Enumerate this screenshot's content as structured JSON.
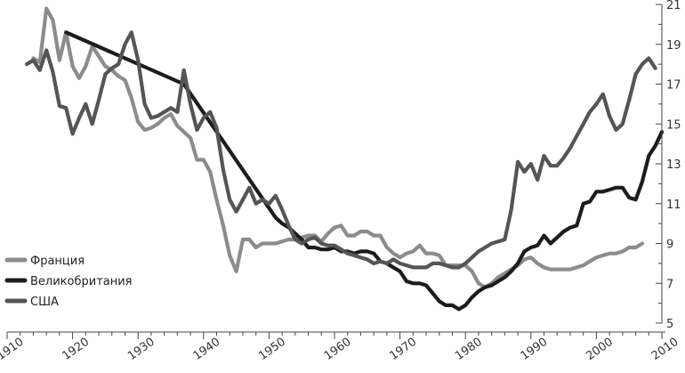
{
  "chart_data": {
    "type": "line",
    "title": "",
    "xlabel": "",
    "ylabel": "",
    "xlim": [
      1910,
      2010
    ],
    "ylim": [
      5,
      21
    ],
    "x_ticks": [
      "1910",
      "1920",
      "1930",
      "1940",
      "1950",
      "1960",
      "1970",
      "1980",
      "1990",
      "2000",
      "2010"
    ],
    "y_ticks": [
      "5",
      "7",
      "9",
      "11",
      "13",
      "15",
      "17",
      "19",
      "21"
    ],
    "y_axis_side": "right",
    "grid": false,
    "legend": {
      "position": "bottom-left"
    },
    "series": [
      {
        "name": "Франция",
        "color": "#8c8c8c",
        "points": [
          [
            1914,
            18.3
          ],
          [
            1915,
            18.1
          ],
          [
            1916,
            20.8
          ],
          [
            1917,
            20.2
          ],
          [
            1918,
            18.2
          ],
          [
            1919,
            19.6
          ],
          [
            1920,
            17.9
          ],
          [
            1921,
            17.3
          ],
          [
            1922,
            17.9
          ],
          [
            1923,
            18.9
          ],
          [
            1924,
            18.4
          ],
          [
            1925,
            17.9
          ],
          [
            1926,
            17.7
          ],
          [
            1927,
            17.4
          ],
          [
            1928,
            17.2
          ],
          [
            1929,
            16.3
          ],
          [
            1930,
            15.1
          ],
          [
            1931,
            14.7
          ],
          [
            1932,
            14.8
          ],
          [
            1933,
            15.0
          ],
          [
            1934,
            15.3
          ],
          [
            1935,
            15.5
          ],
          [
            1936,
            14.9
          ],
          [
            1937,
            14.6
          ],
          [
            1938,
            14.3
          ],
          [
            1939,
            13.2
          ],
          [
            1940,
            13.2
          ],
          [
            1941,
            12.6
          ],
          [
            1942,
            11.2
          ],
          [
            1943,
            9.9
          ],
          [
            1944,
            8.4
          ],
          [
            1945,
            7.6
          ],
          [
            1946,
            9.2
          ],
          [
            1947,
            9.2
          ],
          [
            1948,
            8.8
          ],
          [
            1949,
            9.0
          ],
          [
            1950,
            9.0
          ],
          [
            1951,
            9.0
          ],
          [
            1952,
            9.1
          ],
          [
            1953,
            9.2
          ],
          [
            1954,
            9.2
          ],
          [
            1955,
            9.3
          ],
          [
            1956,
            9.4
          ],
          [
            1957,
            9.4
          ],
          [
            1958,
            9.1
          ],
          [
            1959,
            9.5
          ],
          [
            1960,
            9.8
          ],
          [
            1961,
            9.9
          ],
          [
            1962,
            9.4
          ],
          [
            1963,
            9.4
          ],
          [
            1964,
            9.6
          ],
          [
            1965,
            9.6
          ],
          [
            1966,
            9.4
          ],
          [
            1967,
            9.4
          ],
          [
            1968,
            8.8
          ],
          [
            1969,
            8.5
          ],
          [
            1970,
            8.3
          ],
          [
            1971,
            8.5
          ],
          [
            1972,
            8.6
          ],
          [
            1973,
            8.9
          ],
          [
            1974,
            8.5
          ],
          [
            1975,
            8.5
          ],
          [
            1976,
            8.4
          ],
          [
            1977,
            7.9
          ],
          [
            1978,
            7.9
          ],
          [
            1979,
            7.9
          ],
          [
            1980,
            7.9
          ],
          [
            1981,
            7.6
          ],
          [
            1982,
            7.0
          ],
          [
            1983,
            6.8
          ],
          [
            1984,
            7.0
          ],
          [
            1985,
            7.3
          ],
          [
            1986,
            7.5
          ],
          [
            1987,
            7.7
          ],
          [
            1988,
            7.9
          ],
          [
            1989,
            8.2
          ],
          [
            1990,
            8.3
          ],
          [
            1991,
            8.0
          ],
          [
            1992,
            7.8
          ],
          [
            1993,
            7.7
          ],
          [
            1994,
            7.7
          ],
          [
            1995,
            7.7
          ],
          [
            1996,
            7.7
          ],
          [
            1997,
            7.8
          ],
          [
            1998,
            7.9
          ],
          [
            1999,
            8.1
          ],
          [
            2000,
            8.3
          ],
          [
            2001,
            8.4
          ],
          [
            2002,
            8.5
          ],
          [
            2003,
            8.5
          ],
          [
            2004,
            8.6
          ],
          [
            2005,
            8.8
          ],
          [
            2006,
            8.8
          ],
          [
            2007,
            9.0
          ]
        ]
      },
      {
        "name": "Великобритания",
        "color": "#1c1c1c",
        "points": [
          [
            1919,
            19.6
          ],
          [
            1937,
            17.0
          ],
          [
            1951,
            10.3
          ],
          [
            1952,
            10.0
          ],
          [
            1953,
            9.8
          ],
          [
            1954,
            9.5
          ],
          [
            1955,
            9.2
          ],
          [
            1956,
            8.8
          ],
          [
            1957,
            8.8
          ],
          [
            1958,
            8.7
          ],
          [
            1959,
            8.7
          ],
          [
            1960,
            8.8
          ],
          [
            1961,
            8.6
          ],
          [
            1962,
            8.6
          ],
          [
            1963,
            8.5
          ],
          [
            1964,
            8.6
          ],
          [
            1965,
            8.6
          ],
          [
            1966,
            8.5
          ],
          [
            1967,
            8.1
          ],
          [
            1968,
            8.0
          ],
          [
            1969,
            7.8
          ],
          [
            1970,
            7.6
          ],
          [
            1971,
            7.1
          ],
          [
            1972,
            7.0
          ],
          [
            1973,
            7.0
          ],
          [
            1974,
            6.9
          ],
          [
            1975,
            6.5
          ],
          [
            1976,
            6.1
          ],
          [
            1977,
            5.9
          ],
          [
            1978,
            5.9
          ],
          [
            1979,
            5.7
          ],
          [
            1980,
            5.9
          ],
          [
            1981,
            6.3
          ],
          [
            1982,
            6.6
          ],
          [
            1983,
            6.8
          ],
          [
            1984,
            6.9
          ],
          [
            1985,
            7.1
          ],
          [
            1986,
            7.3
          ],
          [
            1987,
            7.6
          ],
          [
            1988,
            8.0
          ],
          [
            1989,
            8.6
          ],
          [
            1990,
            8.8
          ],
          [
            1991,
            8.9
          ],
          [
            1992,
            9.4
          ],
          [
            1993,
            9.0
          ],
          [
            1994,
            9.3
          ],
          [
            1995,
            9.6
          ],
          [
            1996,
            9.8
          ],
          [
            1997,
            9.9
          ],
          [
            1998,
            11.0
          ],
          [
            1999,
            11.1
          ],
          [
            2000,
            11.6
          ],
          [
            2001,
            11.6
          ],
          [
            2002,
            11.7
          ],
          [
            2003,
            11.8
          ],
          [
            2004,
            11.8
          ],
          [
            2005,
            11.3
          ],
          [
            2006,
            11.2
          ],
          [
            2007,
            12.1
          ],
          [
            2008,
            13.4
          ],
          [
            2009,
            13.9
          ],
          [
            2010,
            14.6
          ]
        ]
      },
      {
        "name": "США",
        "color": "#555555",
        "points": [
          [
            1913,
            18.0
          ],
          [
            1914,
            18.2
          ],
          [
            1915,
            17.7
          ],
          [
            1916,
            18.7
          ],
          [
            1917,
            17.6
          ],
          [
            1918,
            15.9
          ],
          [
            1919,
            15.8
          ],
          [
            1920,
            14.5
          ],
          [
            1921,
            15.3
          ],
          [
            1922,
            16.0
          ],
          [
            1923,
            15.0
          ],
          [
            1924,
            16.2
          ],
          [
            1925,
            17.5
          ],
          [
            1926,
            17.8
          ],
          [
            1927,
            18.0
          ],
          [
            1928,
            19.0
          ],
          [
            1929,
            19.6
          ],
          [
            1930,
            18.2
          ],
          [
            1931,
            16.0
          ],
          [
            1932,
            15.3
          ],
          [
            1933,
            15.4
          ],
          [
            1934,
            15.6
          ],
          [
            1935,
            15.8
          ],
          [
            1936,
            15.6
          ],
          [
            1937,
            17.7
          ],
          [
            1938,
            16.0
          ],
          [
            1939,
            14.7
          ],
          [
            1940,
            15.3
          ],
          [
            1941,
            15.6
          ],
          [
            1942,
            14.8
          ],
          [
            1943,
            12.7
          ],
          [
            1944,
            11.2
          ],
          [
            1945,
            10.6
          ],
          [
            1946,
            11.2
          ],
          [
            1947,
            11.8
          ],
          [
            1948,
            11.0
          ],
          [
            1949,
            11.2
          ],
          [
            1950,
            11.0
          ],
          [
            1951,
            11.4
          ],
          [
            1952,
            10.7
          ],
          [
            1953,
            9.9
          ],
          [
            1954,
            9.2
          ],
          [
            1955,
            9.0
          ],
          [
            1956,
            9.2
          ],
          [
            1957,
            9.3
          ],
          [
            1958,
            9.0
          ],
          [
            1959,
            8.9
          ],
          [
            1960,
            8.9
          ],
          [
            1961,
            8.7
          ],
          [
            1962,
            8.5
          ],
          [
            1963,
            8.4
          ],
          [
            1964,
            8.3
          ],
          [
            1965,
            8.2
          ],
          [
            1966,
            8.0
          ],
          [
            1967,
            8.1
          ],
          [
            1968,
            8.0
          ],
          [
            1969,
            8.2
          ],
          [
            1970,
            8.0
          ],
          [
            1971,
            7.9
          ],
          [
            1972,
            7.8
          ],
          [
            1973,
            7.8
          ],
          [
            1974,
            7.8
          ],
          [
            1975,
            8.0
          ],
          [
            1976,
            8.0
          ],
          [
            1977,
            7.9
          ],
          [
            1978,
            7.8
          ],
          [
            1979,
            7.8
          ],
          [
            1980,
            8.0
          ],
          [
            1981,
            8.3
          ],
          [
            1982,
            8.6
          ],
          [
            1983,
            8.8
          ],
          [
            1984,
            9.0
          ],
          [
            1985,
            9.1
          ],
          [
            1986,
            9.2
          ],
          [
            1987,
            10.7
          ],
          [
            1988,
            13.1
          ],
          [
            1989,
            12.6
          ],
          [
            1990,
            13.0
          ],
          [
            1991,
            12.2
          ],
          [
            1992,
            13.4
          ],
          [
            1993,
            12.9
          ],
          [
            1994,
            12.9
          ],
          [
            1995,
            13.3
          ],
          [
            1996,
            13.8
          ],
          [
            1997,
            14.4
          ],
          [
            1998,
            15.0
          ],
          [
            1999,
            15.6
          ],
          [
            2000,
            16.0
          ],
          [
            2001,
            16.5
          ],
          [
            2002,
            15.4
          ],
          [
            2003,
            14.7
          ],
          [
            2004,
            15.0
          ],
          [
            2005,
            16.2
          ],
          [
            2006,
            17.5
          ],
          [
            2007,
            18.0
          ],
          [
            2008,
            18.3
          ],
          [
            2009,
            17.8
          ]
        ]
      }
    ]
  }
}
